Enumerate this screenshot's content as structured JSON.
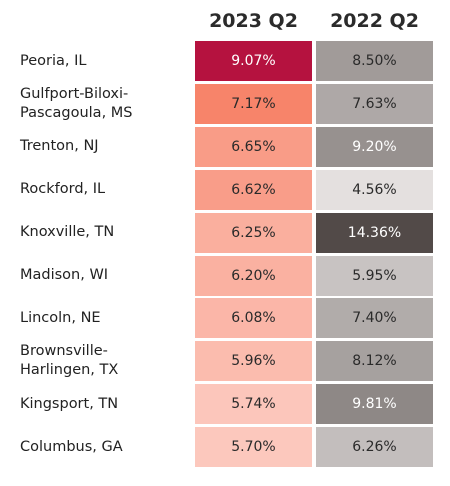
{
  "chart_data": {
    "type": "heatmap",
    "columns": [
      "2023 Q2",
      "2022 Q2"
    ],
    "rows": [
      {
        "label": [
          "Peoria, IL"
        ],
        "values": [
          9.07,
          8.5
        ],
        "display": [
          "9.07%",
          "8.50%"
        ]
      },
      {
        "label": [
          "Gulfport-Biloxi-",
          "Pascagoula, MS"
        ],
        "values": [
          7.17,
          7.63
        ],
        "display": [
          "7.17%",
          "7.63%"
        ]
      },
      {
        "label": [
          "Trenton, NJ"
        ],
        "values": [
          6.65,
          9.2
        ],
        "display": [
          "6.65%",
          "9.20%"
        ]
      },
      {
        "label": [
          "Rockford, IL"
        ],
        "values": [
          6.62,
          4.56
        ],
        "display": [
          "6.62%",
          "4.56%"
        ]
      },
      {
        "label": [
          "Knoxville, TN"
        ],
        "values": [
          6.25,
          14.36
        ],
        "display": [
          "6.25%",
          "14.36%"
        ]
      },
      {
        "label": [
          "Madison, WI"
        ],
        "values": [
          6.2,
          5.95
        ],
        "display": [
          "6.20%",
          "5.95%"
        ]
      },
      {
        "label": [
          "Lincoln, NE"
        ],
        "values": [
          6.08,
          7.4
        ],
        "display": [
          "6.08%",
          "7.40%"
        ]
      },
      {
        "label": [
          "Brownsville-",
          "Harlingen, TX"
        ],
        "values": [
          5.96,
          8.12
        ],
        "display": [
          "5.96%",
          "8.12%"
        ]
      },
      {
        "label": [
          "Kingsport, TN"
        ],
        "values": [
          5.74,
          9.81
        ],
        "display": [
          "5.74%",
          "9.81%"
        ]
      },
      {
        "label": [
          "Columbus, GA"
        ],
        "values": [
          5.7,
          6.26
        ],
        "display": [
          "5.70%",
          "6.26%"
        ]
      }
    ],
    "colors": {
      "2023 Q2": {
        "low": "#fcc8bd",
        "mid": "#f67a5e",
        "high": "#b5123f"
      },
      "2022 Q2": {
        "low": "#e4e0df",
        "high": "#524a48"
      }
    },
    "grid": false,
    "legend": "none"
  }
}
